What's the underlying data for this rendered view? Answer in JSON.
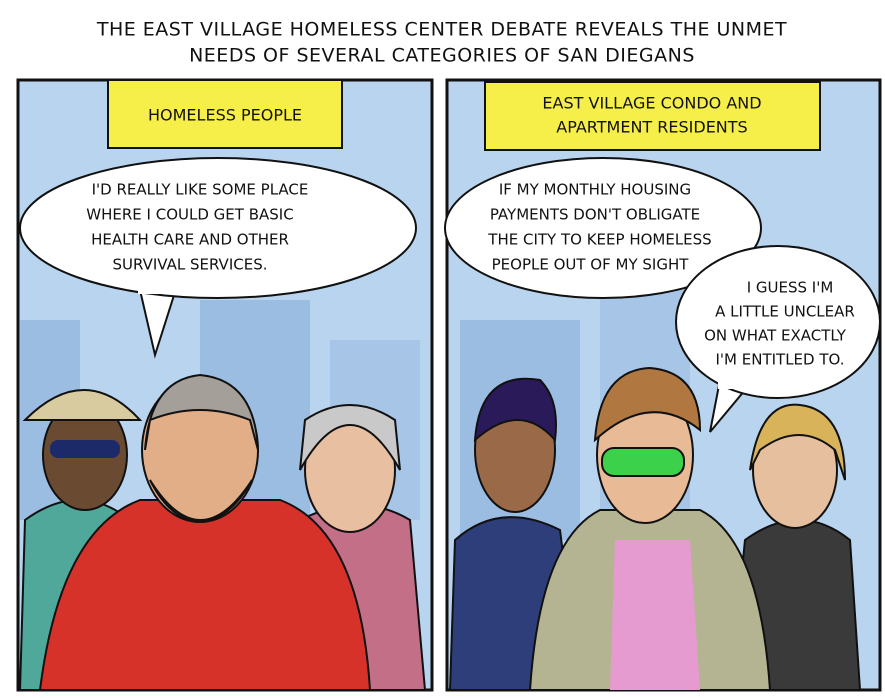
{
  "title": [
    "THE EAST VILLAGE HOMELESS CENTER DEBATE REVEALS THE UNMET",
    "NEEDS OF SEVERAL CATEGORIES OF SAN DIEGANS"
  ],
  "panels": [
    {
      "caption": [
        "HOMELESS PEOPLE"
      ],
      "bubbles": [
        [
          "I'D REALLY LIKE SOME PLACE",
          "WHERE I COULD GET BASIC",
          "HEALTH CARE AND OTHER",
          "SURVIVAL SERVICES."
        ]
      ]
    },
    {
      "caption": [
        "EAST VILLAGE CONDO AND",
        "APARTMENT RESIDENTS"
      ],
      "bubbles": [
        [
          "IF MY MONTHLY HOUSING",
          "PAYMENTS DON'T OBLIGATE",
          "THE CITY TO KEEP HOMELESS",
          "PEOPLE OUT OF MY SIGHT"
        ],
        [
          "I GUESS I'M",
          "A LITTLE UNCLEAR",
          "ON WHAT EXACTLY",
          "I'M ENTITLED TO."
        ]
      ]
    }
  ]
}
